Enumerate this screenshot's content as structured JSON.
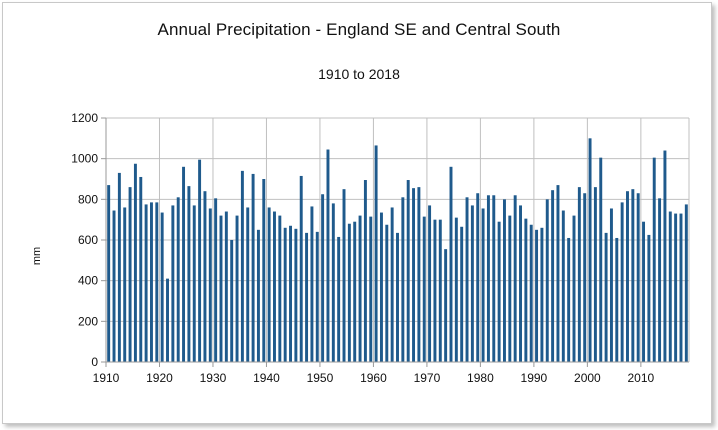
{
  "chart_data": {
    "type": "bar",
    "title": "Annual Precipitation - England SE and Central South",
    "subtitle": "1910 to 2018",
    "xlabel": "",
    "ylabel": "mm",
    "ylim": [
      0,
      1200
    ],
    "yticks": [
      0,
      200,
      400,
      600,
      800,
      1000,
      1200
    ],
    "xticks": [
      1910,
      1920,
      1930,
      1940,
      1950,
      1960,
      1970,
      1980,
      1990,
      2000,
      2010
    ],
    "grid": true,
    "legend": "none",
    "bar_color": "#1f5a8c",
    "x": [
      1910,
      1911,
      1912,
      1913,
      1914,
      1915,
      1916,
      1917,
      1918,
      1919,
      1920,
      1921,
      1922,
      1923,
      1924,
      1925,
      1926,
      1927,
      1928,
      1929,
      1930,
      1931,
      1932,
      1933,
      1934,
      1935,
      1936,
      1937,
      1938,
      1939,
      1940,
      1941,
      1942,
      1943,
      1944,
      1945,
      1946,
      1947,
      1948,
      1949,
      1950,
      1951,
      1952,
      1953,
      1954,
      1955,
      1956,
      1957,
      1958,
      1959,
      1960,
      1961,
      1962,
      1963,
      1964,
      1965,
      1966,
      1967,
      1968,
      1969,
      1970,
      1971,
      1972,
      1973,
      1974,
      1975,
      1976,
      1977,
      1978,
      1979,
      1980,
      1981,
      1982,
      1983,
      1984,
      1985,
      1986,
      1987,
      1988,
      1989,
      1990,
      1991,
      1992,
      1993,
      1994,
      1995,
      1996,
      1997,
      1998,
      1999,
      2000,
      2001,
      2002,
      2003,
      2004,
      2005,
      2006,
      2007,
      2008,
      2009,
      2010,
      2011,
      2012,
      2013,
      2014,
      2015,
      2016,
      2017,
      2018
    ],
    "values": [
      870,
      745,
      930,
      760,
      860,
      975,
      910,
      775,
      785,
      785,
      735,
      410,
      770,
      810,
      960,
      865,
      770,
      995,
      840,
      755,
      805,
      720,
      740,
      600,
      720,
      940,
      760,
      925,
      650,
      900,
      760,
      740,
      720,
      660,
      670,
      655,
      915,
      635,
      765,
      640,
      825,
      1045,
      780,
      615,
      850,
      680,
      690,
      720,
      895,
      715,
      1065,
      735,
      675,
      760,
      635,
      810,
      895,
      855,
      860,
      715,
      770,
      700,
      700,
      555,
      960,
      710,
      665,
      810,
      770,
      830,
      755,
      820,
      820,
      690,
      800,
      720,
      820,
      770,
      705,
      675,
      650,
      660,
      800,
      845,
      870,
      745,
      610,
      720,
      860,
      830,
      1100,
      860,
      1005,
      635,
      755,
      610,
      785,
      840,
      850,
      830,
      690,
      625,
      1005,
      805,
      1040,
      740,
      730,
      730,
      775
    ]
  }
}
